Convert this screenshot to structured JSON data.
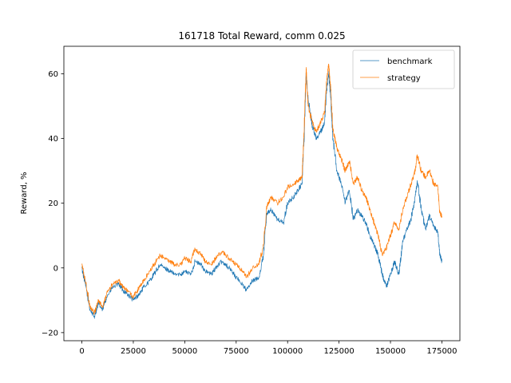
{
  "chart_data": {
    "type": "line",
    "title": "161718 Total Reward, comm 0.025",
    "xlabel": "",
    "ylabel": "Reward, %",
    "xlim": [
      -8750,
      183750
    ],
    "ylim": [
      -22.5,
      68.5
    ],
    "xticks": [
      0,
      25000,
      50000,
      75000,
      100000,
      125000,
      150000,
      175000
    ],
    "xtick_labels": [
      "0",
      "25000",
      "50000",
      "75000",
      "100000",
      "125000",
      "150000",
      "175000"
    ],
    "yticks": [
      -20,
      0,
      20,
      40,
      60
    ],
    "ytick_labels": [
      "−20",
      "0",
      "20",
      "40",
      "60"
    ],
    "grid": false,
    "legend": {
      "position": "top-right",
      "entries": [
        "benchmark",
        "strategy"
      ]
    },
    "series": [
      {
        "name": "benchmark",
        "color": "#1f77b4",
        "x": [
          0,
          2000,
          4000,
          6000,
          8000,
          10000,
          12000,
          15000,
          18000,
          20000,
          22000,
          25000,
          28000,
          30000,
          33000,
          35000,
          38000,
          40000,
          43000,
          45000,
          48000,
          50000,
          53000,
          55000,
          58000,
          60000,
          63000,
          65000,
          68000,
          70000,
          73000,
          75000,
          78000,
          80000,
          83000,
          86000,
          88000,
          90000,
          92000,
          95000,
          98000,
          100000,
          103000,
          105000,
          107000,
          108000,
          109000,
          110000,
          112000,
          114000,
          116000,
          118000,
          119000,
          120000,
          121000,
          122000,
          124000,
          126000,
          128000,
          130000,
          132000,
          134000,
          136000,
          138000,
          140000,
          142000,
          144000,
          146000,
          148000,
          150000,
          152000,
          154000,
          156000,
          158000,
          160000,
          162000,
          163000,
          165000,
          167000,
          169000,
          171000,
          173000,
          174000,
          175000
        ],
        "y": [
          0,
          -6,
          -13,
          -15,
          -11,
          -13,
          -9,
          -6,
          -5,
          -7,
          -8,
          -10,
          -8,
          -6,
          -4,
          -2,
          1,
          0,
          -1,
          -2,
          -2,
          -1,
          -2,
          2,
          1,
          -1,
          -2,
          0,
          2,
          1,
          -1,
          -3,
          -5,
          -7,
          -4,
          -3,
          3,
          17,
          18,
          15,
          14,
          20,
          22,
          24,
          26,
          40,
          60,
          52,
          44,
          40,
          42,
          45,
          55,
          60,
          52,
          40,
          30,
          26,
          20,
          24,
          15,
          18,
          16,
          14,
          10,
          7,
          4,
          -2,
          -6,
          -2,
          2,
          -2,
          8,
          12,
          15,
          22,
          27,
          18,
          12,
          16,
          13,
          11,
          4,
          2
        ]
      },
      {
        "name": "strategy",
        "color": "#ff7f0e",
        "x": [
          0,
          2000,
          4000,
          6000,
          8000,
          10000,
          12000,
          15000,
          18000,
          20000,
          22000,
          25000,
          28000,
          30000,
          33000,
          35000,
          38000,
          40000,
          43000,
          45000,
          48000,
          50000,
          53000,
          55000,
          58000,
          60000,
          63000,
          65000,
          68000,
          70000,
          73000,
          75000,
          78000,
          80000,
          83000,
          86000,
          88000,
          90000,
          92000,
          95000,
          98000,
          100000,
          103000,
          105000,
          107000,
          108000,
          109000,
          110000,
          112000,
          114000,
          116000,
          118000,
          119000,
          120000,
          121000,
          122000,
          124000,
          126000,
          128000,
          130000,
          132000,
          134000,
          136000,
          138000,
          140000,
          142000,
          144000,
          146000,
          148000,
          150000,
          152000,
          154000,
          156000,
          158000,
          160000,
          162000,
          163000,
          165000,
          167000,
          169000,
          171000,
          173000,
          174000,
          175000
        ],
        "y": [
          1,
          -5,
          -12,
          -14,
          -10,
          -12,
          -8,
          -5,
          -4,
          -6,
          -7,
          -9,
          -6,
          -4,
          -1,
          1,
          4,
          3,
          2,
          1,
          1,
          3,
          2,
          6,
          4,
          2,
          1,
          3,
          5,
          4,
          2,
          1,
          -1,
          -3,
          0,
          1,
          6,
          19,
          22,
          20,
          22,
          25,
          26,
          27,
          28,
          42,
          62,
          50,
          45,
          42,
          45,
          48,
          58,
          63,
          55,
          43,
          37,
          34,
          30,
          33,
          26,
          28,
          24,
          22,
          18,
          14,
          10,
          4,
          6,
          10,
          14,
          12,
          18,
          22,
          26,
          30,
          35,
          30,
          28,
          30,
          26,
          25,
          17,
          16
        ]
      }
    ]
  }
}
